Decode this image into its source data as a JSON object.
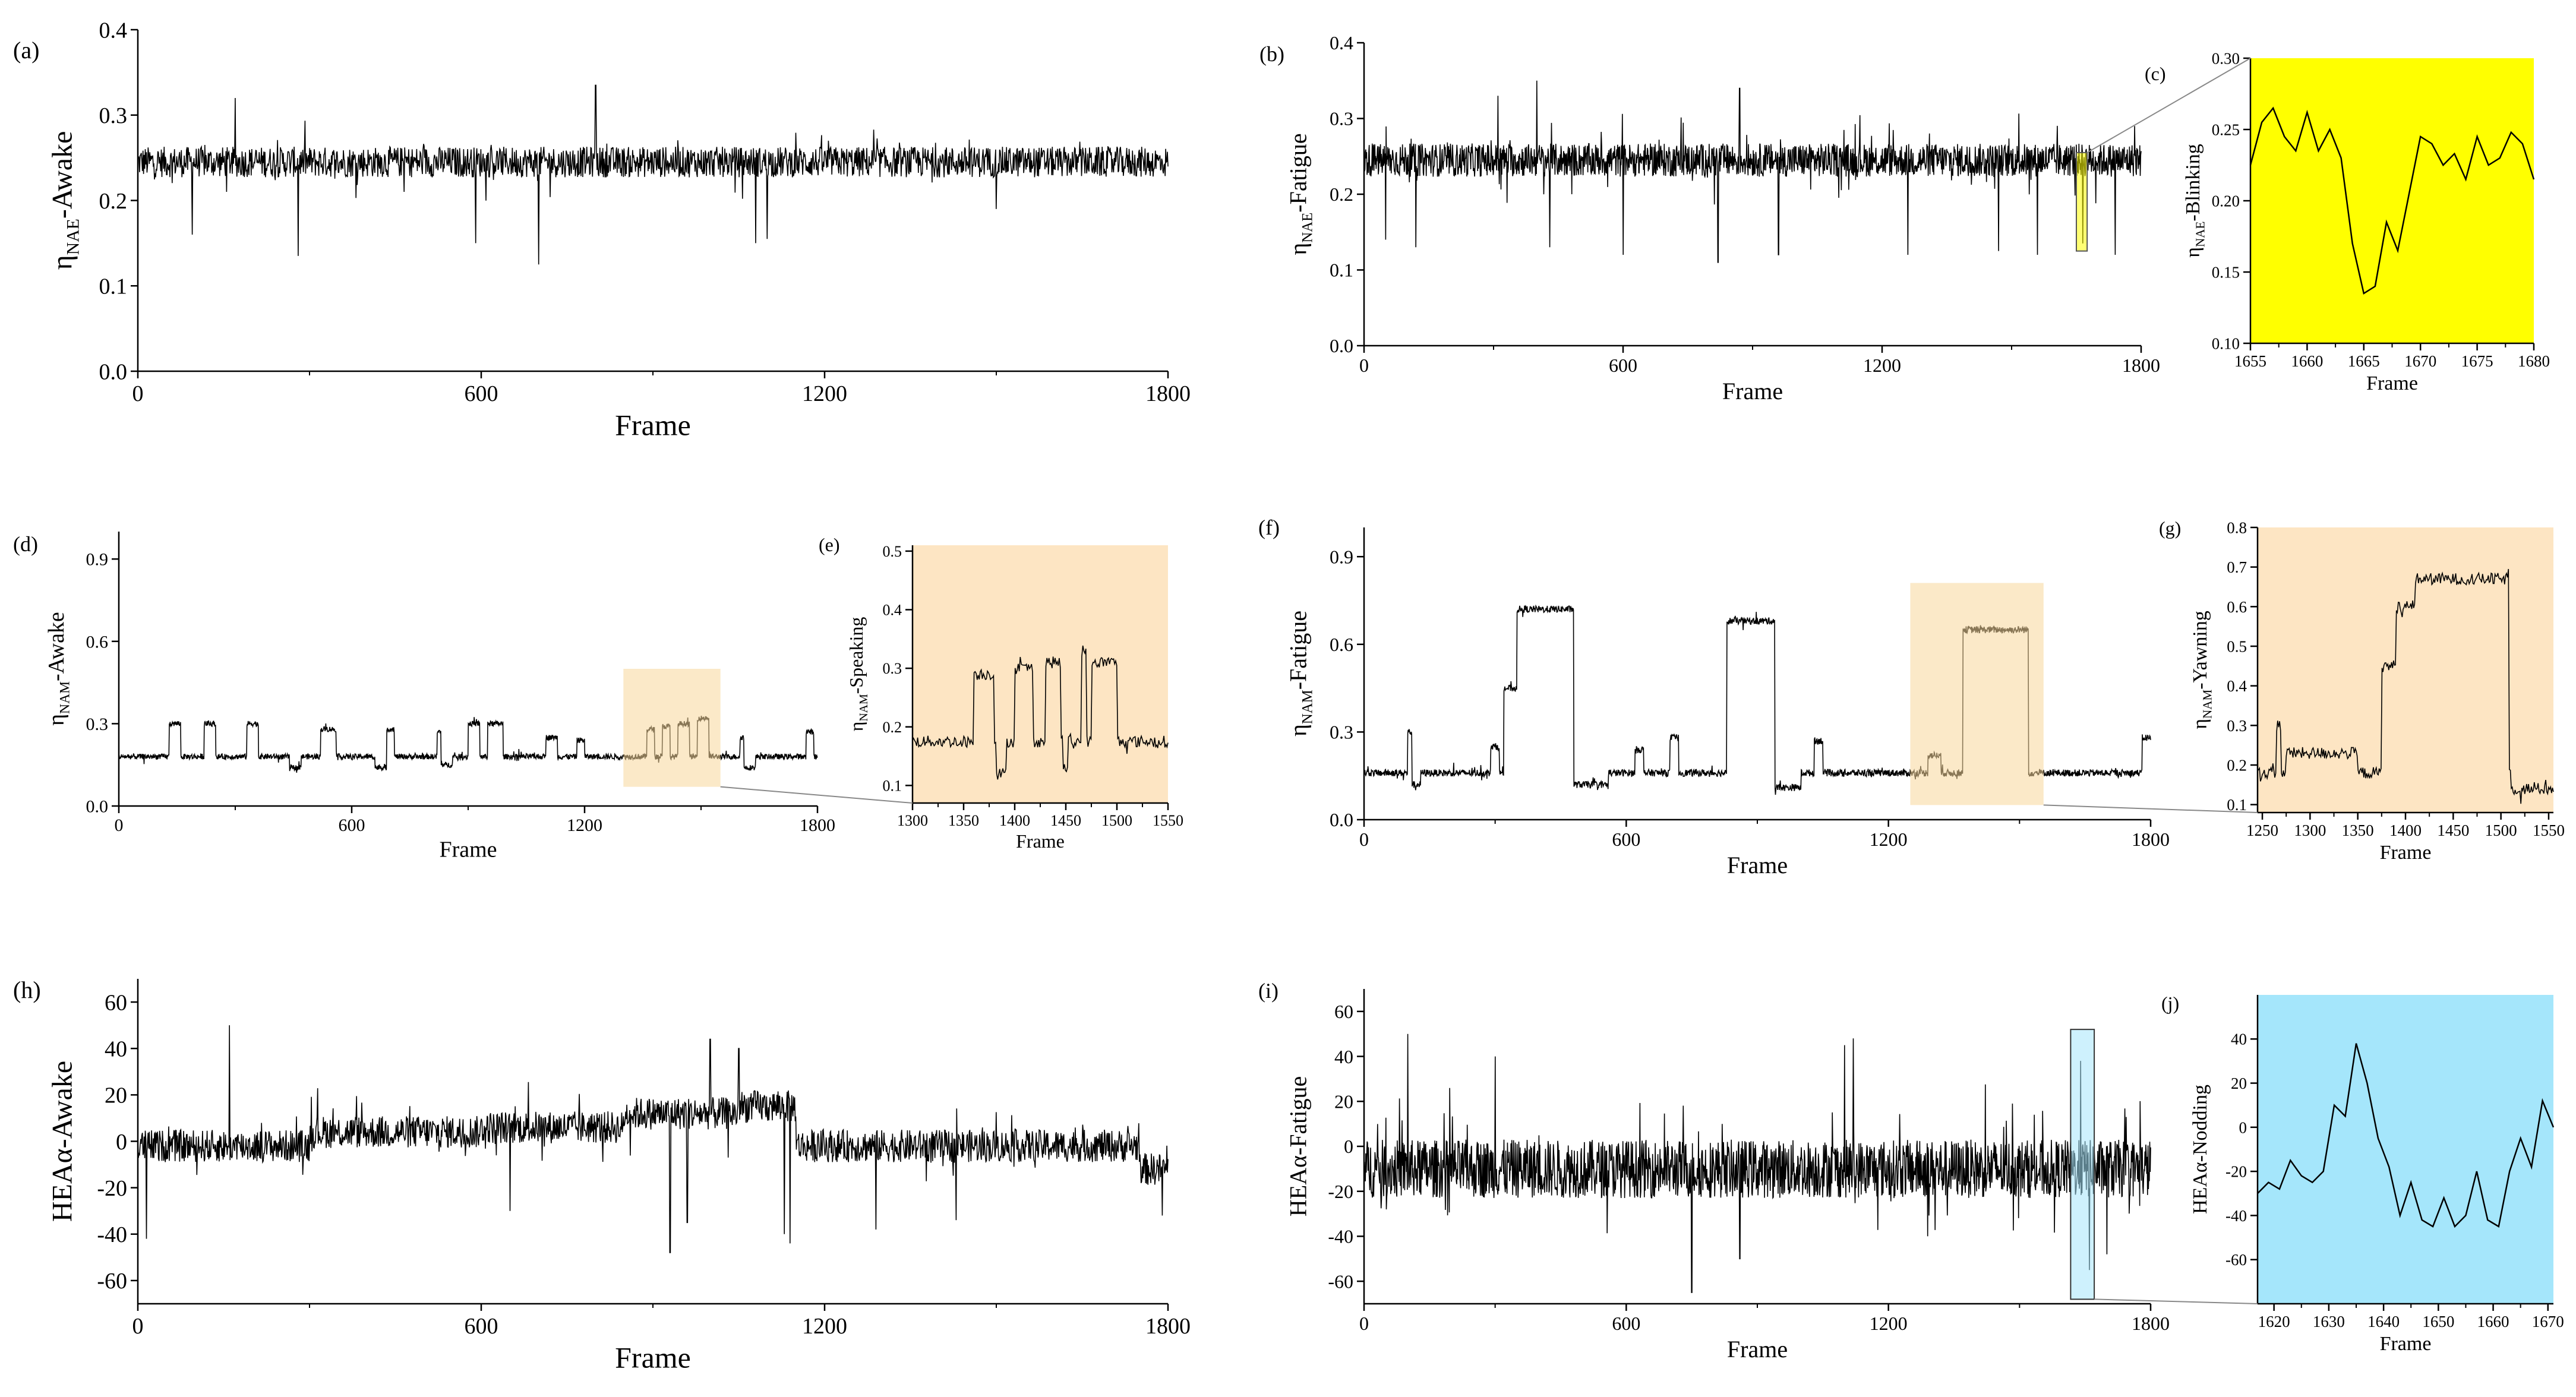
{
  "colors": {
    "blink_bg": "#ffff00",
    "orange_bg": "#fde5c3",
    "orange_box": "#f7d79b",
    "cyan_bg": "#a5e6fb",
    "line": "#000000"
  },
  "chart_data": [
    {
      "id": "a",
      "label": "(a)",
      "type": "line",
      "ylabel": "ηNAE-Awake",
      "ylabel_main": "η",
      "ylabel_sub": "NAE",
      "ylabel_rest": "-Awake",
      "xlabel": "Frame",
      "xlim": [
        0,
        1800
      ],
      "ylim": [
        0,
        0.4
      ],
      "xticks": [
        0,
        600,
        1200,
        1800
      ],
      "yticks": [
        0.0,
        0.1,
        0.2,
        0.3,
        0.4
      ],
      "ytick_labels": [
        "0.0",
        "0.1",
        "0.2",
        "0.3",
        "0.4"
      ],
      "n": 1800,
      "x0": 0,
      "x1": 1800,
      "segments": [
        [
          0,
          0.245
        ]
      ],
      "noise": 0.018,
      "spikes": [
        [
          95,
          0.16
        ],
        [
          170,
          0.32
        ],
        [
          280,
          0.135
        ],
        [
          590,
          0.15
        ],
        [
          700,
          0.125
        ],
        [
          800,
          0.335
        ],
        [
          1080,
          0.15
        ],
        [
          1100,
          0.155
        ],
        [
          1500,
          0.19
        ]
      ]
    },
    {
      "id": "b",
      "label": "(b)",
      "type": "line",
      "ylabel": "ηNAE-Fatigue",
      "ylabel_main": "η",
      "ylabel_sub": "NAE",
      "ylabel_rest": "-Fatigue",
      "xlabel": "Frame",
      "xlim": [
        0,
        1800
      ],
      "ylim": [
        0,
        0.4
      ],
      "xticks": [
        0,
        600,
        1200,
        1800
      ],
      "yticks": [
        0.0,
        0.1,
        0.2,
        0.3,
        0.4
      ],
      "ytick_labels": [
        "0.0",
        "0.1",
        "0.2",
        "0.3",
        "0.4"
      ],
      "n": 1800,
      "x0": 0,
      "x1": 1800,
      "segments": [
        [
          0,
          0.245
        ]
      ],
      "noise": 0.022,
      "spikes": [
        [
          50,
          0.14
        ],
        [
          120,
          0.13
        ],
        [
          310,
          0.33
        ],
        [
          400,
          0.35
        ],
        [
          430,
          0.13
        ],
        [
          600,
          0.12
        ],
        [
          820,
          0.11
        ],
        [
          870,
          0.34
        ],
        [
          960,
          0.12
        ],
        [
          1260,
          0.12
        ],
        [
          1470,
          0.125
        ],
        [
          1560,
          0.12
        ],
        [
          1665,
          0.135
        ],
        [
          1740,
          0.12
        ],
        [
          1785,
          0.29
        ]
      ]
    },
    {
      "id": "c",
      "label": "(c)",
      "type": "line",
      "ylabel": "ηNAE-Blinking",
      "ylabel_main": "η",
      "ylabel_sub": "NAE",
      "ylabel_rest": "-Blinking",
      "xlabel": "Frame",
      "xlim": [
        1655,
        1680
      ],
      "ylim": [
        0.1,
        0.3
      ],
      "xticks": [
        1655,
        1660,
        1665,
        1670,
        1675,
        1680
      ],
      "yticks": [
        0.1,
        0.15,
        0.2,
        0.25,
        0.3
      ],
      "ytick_labels": [
        "0.10",
        "0.15",
        "0.20",
        "0.25",
        "0.30"
      ],
      "x": [
        1655,
        1656,
        1657,
        1658,
        1659,
        1660,
        1661,
        1662,
        1663,
        1664,
        1665,
        1666,
        1667,
        1668,
        1669,
        1670,
        1671,
        1672,
        1673,
        1674,
        1675,
        1676,
        1677,
        1678,
        1679,
        1680
      ],
      "y": [
        0.225,
        0.255,
        0.265,
        0.245,
        0.235,
        0.262,
        0.235,
        0.25,
        0.23,
        0.17,
        0.135,
        0.14,
        0.185,
        0.165,
        0.205,
        0.245,
        0.24,
        0.225,
        0.233,
        0.215,
        0.245,
        0.225,
        0.23,
        0.248,
        0.24,
        0.215
      ]
    },
    {
      "id": "d",
      "label": "(d)",
      "type": "line",
      "ylabel": "ηNAM-Awake",
      "ylabel_main": "η",
      "ylabel_sub": "NAM",
      "ylabel_rest": "-Awake",
      "xlabel": "Frame",
      "xlim": [
        0,
        1800
      ],
      "ylim": [
        0,
        1.0
      ],
      "xticks": [
        0,
        600,
        1200,
        1800
      ],
      "yticks": [
        0.0,
        0.3,
        0.6,
        0.9
      ],
      "ytick_labels": [
        "0.0",
        "0.3",
        "0.6",
        "0.9"
      ],
      "n": 1800,
      "x0": 0,
      "x1": 1800,
      "segments": [
        [
          0,
          0.18
        ]
      ],
      "noise": 0.01,
      "bursts": [
        [
          130,
          160,
          0.3
        ],
        [
          220,
          250,
          0.3
        ],
        [
          330,
          360,
          0.3
        ],
        [
          520,
          560,
          0.28
        ],
        [
          680,
          710,
          0.28
        ],
        [
          820,
          850,
          0.27
        ],
        [
          900,
          930,
          0.3
        ],
        [
          950,
          990,
          0.3
        ],
        [
          1100,
          1130,
          0.25
        ],
        [
          1180,
          1200,
          0.24
        ],
        [
          1360,
          1380,
          0.28
        ],
        [
          1400,
          1420,
          0.29
        ],
        [
          1440,
          1470,
          0.3
        ],
        [
          1490,
          1520,
          0.32
        ],
        [
          1600,
          1630,
          0.25
        ],
        [
          1770,
          1790,
          0.27
        ]
      ],
      "dips": [
        [
          440,
          470,
          0.14
        ],
        [
          660,
          690,
          0.14
        ],
        [
          830,
          860,
          0.15
        ],
        [
          1610,
          1640,
          0.14
        ]
      ]
    },
    {
      "id": "e",
      "label": "(e)",
      "type": "line",
      "ylabel": "ηNAM-Speaking",
      "ylabel_main": "η",
      "ylabel_sub": "NAM",
      "ylabel_rest": "-Speaking",
      "xlabel": "Frame",
      "xlim": [
        1300,
        1550
      ],
      "ylim": [
        0.07,
        0.51
      ],
      "xticks": [
        1300,
        1350,
        1400,
        1450,
        1500,
        1550
      ],
      "yticks": [
        0.1,
        0.2,
        0.3,
        0.4,
        0.5
      ],
      "ytick_labels": [
        "0.1",
        "0.2",
        "0.3",
        "0.4",
        "0.5"
      ],
      "n": 250,
      "x0": 1300,
      "x1": 1550,
      "segments": [
        [
          1300,
          0.175
        ]
      ],
      "noise": 0.01,
      "bursts": [
        [
          1360,
          1380,
          0.29
        ],
        [
          1400,
          1418,
          0.3
        ],
        [
          1430,
          1445,
          0.31
        ],
        [
          1465,
          1470,
          0.33
        ],
        [
          1475,
          1500,
          0.31
        ]
      ],
      "dips": [
        [
          1382,
          1392,
          0.12
        ],
        [
          1447,
          1452,
          0.13
        ]
      ]
    },
    {
      "id": "f",
      "label": "(f)",
      "type": "line",
      "ylabel": "ηNAM-Fatigue",
      "ylabel_main": "η",
      "ylabel_sub": "NAM",
      "ylabel_rest": "-Fatigue",
      "xlabel": "Frame",
      "xlim": [
        0,
        1800
      ],
      "ylim": [
        0,
        1.0
      ],
      "xticks": [
        0,
        600,
        1200,
        1800
      ],
      "yticks": [
        0.0,
        0.3,
        0.6,
        0.9
      ],
      "ytick_labels": [
        "0.0",
        "0.3",
        "0.6",
        "0.9"
      ],
      "n": 1800,
      "x0": 0,
      "x1": 1800,
      "segments": [
        [
          0,
          0.16
        ]
      ],
      "noise": 0.012,
      "bursts": [
        [
          100,
          120,
          0.3
        ],
        [
          290,
          310,
          0.25
        ],
        [
          320,
          350,
          0.45
        ],
        [
          350,
          480,
          0.72
        ],
        [
          620,
          640,
          0.24
        ],
        [
          700,
          720,
          0.28
        ],
        [
          830,
          940,
          0.68
        ],
        [
          1030,
          1050,
          0.27
        ],
        [
          1290,
          1320,
          0.22
        ],
        [
          1370,
          1520,
          0.65
        ],
        [
          1780,
          1800,
          0.28
        ]
      ],
      "dips": [
        [
          110,
          130,
          0.12
        ],
        [
          480,
          560,
          0.12
        ],
        [
          940,
          1000,
          0.11
        ]
      ]
    },
    {
      "id": "g",
      "label": "(g)",
      "type": "line",
      "ylabel": "ηNAM-Yawning",
      "ylabel_main": "η",
      "ylabel_sub": "NAM",
      "ylabel_rest": "-Yawning",
      "xlabel": "Frame",
      "xlim": [
        1245,
        1555
      ],
      "ylim": [
        0.08,
        0.8
      ],
      "xticks": [
        1250,
        1300,
        1350,
        1400,
        1450,
        1500,
        1550
      ],
      "yticks": [
        0.1,
        0.2,
        0.3,
        0.4,
        0.5,
        0.6,
        0.7,
        0.8
      ],
      "ytick_labels": [
        "0.1",
        "0.2",
        "0.3",
        "0.4",
        "0.5",
        "0.6",
        "0.7",
        "0.8"
      ],
      "n": 310,
      "x0": 1245,
      "x1": 1555,
      "segments": [
        [
          1245,
          0.18
        ]
      ],
      "noise": 0.015,
      "bursts": [
        [
          1265,
          1270,
          0.3
        ],
        [
          1275,
          1350,
          0.23
        ],
        [
          1375,
          1390,
          0.45
        ],
        [
          1390,
          1410,
          0.6
        ],
        [
          1410,
          1508,
          0.67
        ]
      ],
      "dips": [
        [
          1510,
          1555,
          0.14
        ]
      ]
    },
    {
      "id": "h",
      "label": "(h)",
      "type": "line",
      "ylabel": "HEAα-Awake",
      "xlabel": "Frame",
      "xlim": [
        0,
        1800
      ],
      "ylim": [
        -70,
        70
      ],
      "xticks": [
        0,
        600,
        1200,
        1800
      ],
      "yticks": [
        -60,
        -40,
        -20,
        0,
        20,
        40,
        60
      ],
      "ytick_labels": [
        "-60",
        "-40",
        "-20",
        "0",
        "20",
        "40",
        "60"
      ],
      "n": 1800,
      "x0": 0,
      "x1": 1800,
      "segments": [
        [
          0,
          -2
        ],
        [
          300,
          4
        ],
        [
          600,
          6
        ],
        [
          850,
          12
        ],
        [
          1050,
          15
        ],
        [
          1150,
          -2
        ],
        [
          1750,
          -12
        ]
      ],
      "noise": 7,
      "spikes": [
        [
          15,
          -42
        ],
        [
          160,
          50
        ],
        [
          650,
          -30
        ],
        [
          930,
          -48
        ],
        [
          960,
          -35
        ],
        [
          1000,
          44
        ],
        [
          1050,
          40
        ],
        [
          1130,
          -40
        ],
        [
          1140,
          -44
        ],
        [
          1290,
          -38
        ],
        [
          1430,
          -34
        ],
        [
          1790,
          -32
        ]
      ]
    },
    {
      "id": "i",
      "label": "(i)",
      "type": "line",
      "ylabel": "HEAα-Fatigue",
      "xlabel": "Frame",
      "xlim": [
        0,
        1800
      ],
      "ylim": [
        -70,
        70
      ],
      "xticks": [
        0,
        600,
        1200,
        1800
      ],
      "yticks": [
        -60,
        -40,
        -20,
        0,
        20,
        40,
        60
      ],
      "ytick_labels": [
        "-60",
        "-40",
        "-20",
        "0",
        "20",
        "40",
        "60"
      ],
      "n": 1800,
      "x0": 0,
      "x1": 1800,
      "segments": [
        [
          0,
          -10
        ]
      ],
      "noise": 13,
      "spikes": [
        [
          100,
          50
        ],
        [
          300,
          40
        ],
        [
          750,
          -65
        ],
        [
          860,
          -50
        ],
        [
          1100,
          45
        ],
        [
          1120,
          48
        ],
        [
          1290,
          -40
        ],
        [
          1640,
          38
        ],
        [
          1660,
          -55
        ],
        [
          1700,
          -48
        ]
      ]
    },
    {
      "id": "j",
      "label": "(j)",
      "type": "line",
      "ylabel": "HEAα-Nodding",
      "xlabel": "Frame",
      "xlim": [
        1617,
        1671
      ],
      "ylim": [
        -80,
        60
      ],
      "xticks": [
        1620,
        1630,
        1640,
        1650,
        1660,
        1670
      ],
      "yticks": [
        -60,
        -40,
        -20,
        0,
        20,
        40
      ],
      "ytick_labels": [
        "-60",
        "-40",
        "-20",
        "0",
        "20",
        "40"
      ],
      "x": [
        1617,
        1619,
        1621,
        1623,
        1625,
        1627,
        1629,
        1631,
        1633,
        1635,
        1637,
        1639,
        1641,
        1643,
        1645,
        1647,
        1649,
        1651,
        1653,
        1655,
        1657,
        1659,
        1661,
        1663,
        1665,
        1667,
        1669,
        1671
      ],
      "y": [
        -30,
        -25,
        -28,
        -15,
        -22,
        -25,
        -20,
        10,
        5,
        38,
        20,
        -5,
        -18,
        -40,
        -25,
        -42,
        -45,
        -32,
        -45,
        -40,
        -20,
        -42,
        -45,
        -20,
        -5,
        -18,
        12,
        0
      ]
    }
  ],
  "highlights": [
    {
      "id": "b-c",
      "label": "blinking region"
    },
    {
      "id": "d-e",
      "label": "speaking region"
    },
    {
      "id": "f-g",
      "label": "yawning region"
    },
    {
      "id": "i-j",
      "label": "nodding region"
    }
  ]
}
